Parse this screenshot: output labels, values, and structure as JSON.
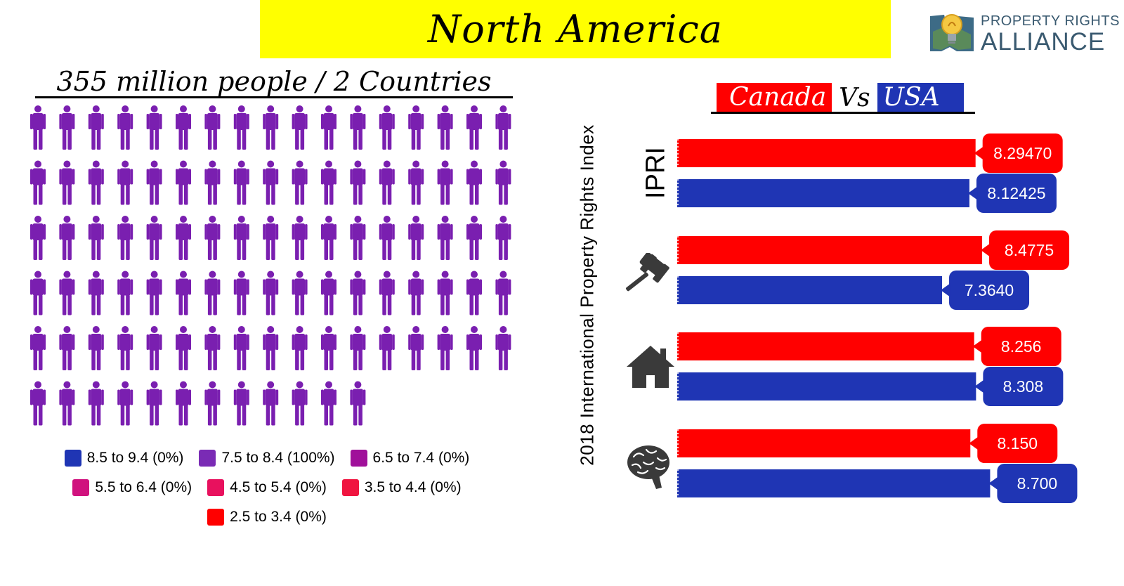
{
  "header": {
    "title": "North America"
  },
  "logo": {
    "line1": "PROPERTY RIGHTS",
    "line2": "ALLIANCE",
    "icon": "lightbulb-map-icon"
  },
  "people": {
    "title": "355 million people / 2 Countries",
    "icon": "person-icon",
    "color": "#7a1fb0",
    "count": 97
  },
  "legend": [
    {
      "label": "8.5 to 9.4 (0%)",
      "color": "#1f35b4"
    },
    {
      "label": "7.5 to 8.4 (100%)",
      "color": "#7a2bb5"
    },
    {
      "label": "6.5 to 7.4 (0%)",
      "color": "#a0109a"
    },
    {
      "label": "5.5 to 6.4 (0%)",
      "color": "#d0127e"
    },
    {
      "label": "4.5 to 5.4 (0%)",
      "color": "#e8115e"
    },
    {
      "label": "3.5 to 4.4 (0%)",
      "color": "#f01540"
    },
    {
      "label": "2.5 to 3.4 (0%)",
      "color": "#ff0000"
    }
  ],
  "comparison": {
    "vertical_title": "2018 International Property Rights Index",
    "country_a": "Canada",
    "vs": "Vs",
    "country_b": "USA",
    "colors": {
      "canada": "#ff0000",
      "usa": "#1f35b4"
    }
  },
  "chart_data": {
    "type": "bar",
    "orientation": "horizontal",
    "categories": [
      {
        "label": "IPRI",
        "icon": null
      },
      {
        "label": "",
        "icon": "gavel-icon"
      },
      {
        "label": "",
        "icon": "house-icon"
      },
      {
        "label": "",
        "icon": "brain-icon"
      }
    ],
    "series": [
      {
        "name": "Canada",
        "values": [
          "8.29470",
          "8.4775",
          "8.256",
          "8.150"
        ]
      },
      {
        "name": "USA",
        "values": [
          "8.12425",
          "7.3640",
          "8.308",
          "8.700"
        ]
      }
    ],
    "xlim": [
      0,
      10
    ],
    "grid": false
  }
}
